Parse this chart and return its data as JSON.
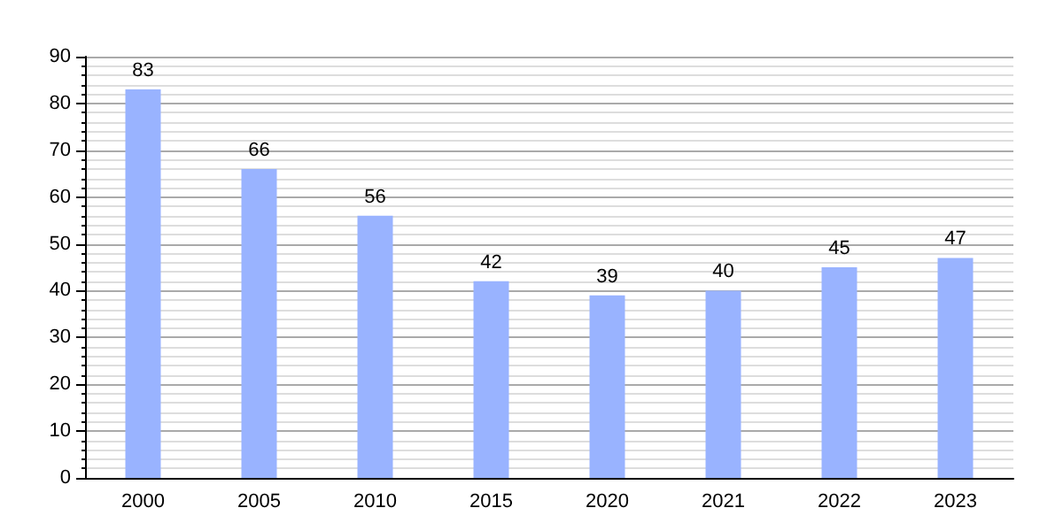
{
  "chart_data": {
    "type": "bar",
    "categories": [
      "2000",
      "2005",
      "2010",
      "2015",
      "2020",
      "2021",
      "2022",
      "2023"
    ],
    "values": [
      83,
      66,
      56,
      42,
      39,
      40,
      45,
      47
    ],
    "color": "#99b3ff",
    "ylim": [
      0,
      90
    ],
    "yticks": [
      0,
      10,
      20,
      30,
      40,
      50,
      60,
      70,
      80,
      90
    ],
    "grid": true,
    "data_labels": true
  }
}
